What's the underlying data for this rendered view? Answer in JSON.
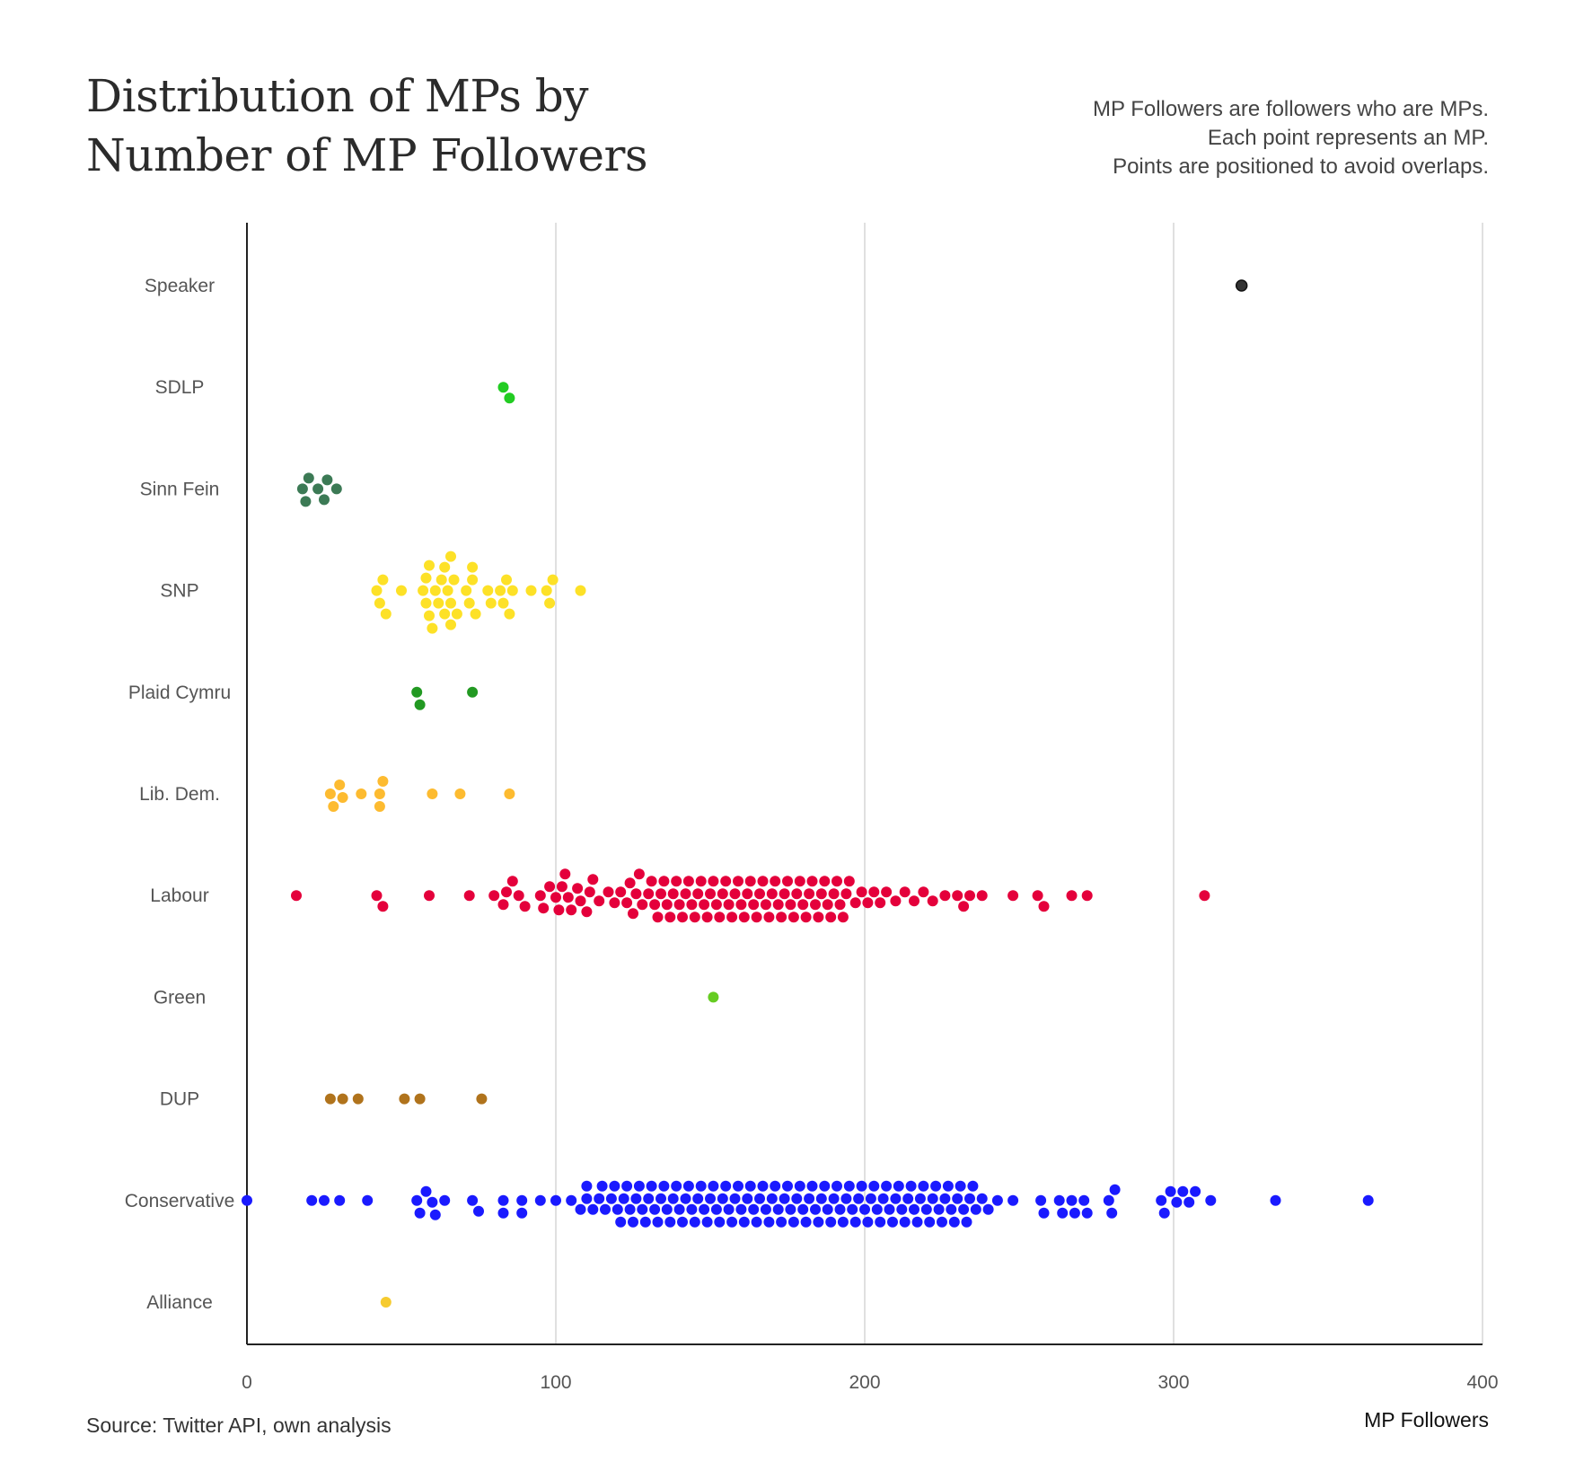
{
  "title": "Distribution of MPs by Number of MP Followers",
  "notes": [
    "MP Followers are followers who are MPs.",
    "Each point represents an MP.",
    "Points are positioned to avoid overlaps."
  ],
  "source": "Source: Twitter API, own analysis",
  "chart_data": {
    "type": "scatter",
    "subtype": "beeswarm",
    "xlabel": "MP Followers",
    "ylabel": "",
    "xlim": [
      0,
      400
    ],
    "xticks": [
      0,
      100,
      200,
      300,
      400
    ],
    "grid": "vertical",
    "categories": [
      "Speaker",
      "SDLP",
      "Sinn Fein",
      "SNP",
      "Plaid Cymru",
      "Lib. Dem.",
      "Labour",
      "Green",
      "DUP",
      "Conservative",
      "Alliance"
    ],
    "colors": {
      "Speaker": "#333333",
      "SDLP": "#22cc22",
      "Sinn Fein": "#3c7a55",
      "SNP": "#fde127",
      "Plaid Cymru": "#229922",
      "Lib. Dem.": "#fdbb30",
      "Labour": "#e4003b",
      "Green": "#66cc22",
      "DUP": "#b0731c",
      "Conservative": "#1a1aff",
      "Alliance": "#f6cb2f"
    },
    "series": [
      {
        "name": "Speaker",
        "values": [
          322
        ]
      },
      {
        "name": "SDLP",
        "values": [
          83,
          85
        ]
      },
      {
        "name": "Sinn Fein",
        "values": [
          18,
          19,
          20,
          23,
          25,
          26,
          29
        ]
      },
      {
        "name": "SNP",
        "values": [
          42,
          43,
          44,
          45,
          50,
          57,
          58,
          58,
          59,
          59,
          60,
          61,
          62,
          63,
          64,
          64,
          65,
          66,
          66,
          66,
          67,
          68,
          71,
          72,
          73,
          73,
          74,
          78,
          79,
          82,
          83,
          84,
          85,
          86,
          92,
          97,
          98,
          99,
          108
        ]
      },
      {
        "name": "Plaid Cymru",
        "values": [
          55,
          56,
          73
        ]
      },
      {
        "name": "Lib. Dem.",
        "values": [
          27,
          28,
          30,
          31,
          37,
          43,
          43,
          44,
          60,
          69,
          85
        ]
      },
      {
        "name": "Labour",
        "values": [
          16,
          42,
          44,
          59,
          72,
          80,
          83,
          84,
          86,
          88,
          90,
          95,
          96,
          98,
          100,
          101,
          102,
          103,
          104,
          105,
          107,
          108,
          110,
          111,
          112,
          114,
          117,
          119,
          121,
          123,
          124,
          125,
          126,
          127,
          128,
          130,
          131,
          132,
          133,
          134,
          135,
          136,
          137,
          138,
          139,
          140,
          141,
          142,
          143,
          144,
          145,
          146,
          147,
          148,
          149,
          150,
          151,
          152,
          153,
          154,
          155,
          156,
          157,
          158,
          159,
          160,
          161,
          162,
          163,
          164,
          165,
          166,
          167,
          168,
          169,
          170,
          171,
          172,
          173,
          174,
          175,
          176,
          177,
          178,
          179,
          180,
          181,
          182,
          183,
          184,
          185,
          186,
          187,
          188,
          189,
          190,
          191,
          192,
          193,
          194,
          195,
          197,
          199,
          201,
          203,
          205,
          207,
          210,
          213,
          216,
          219,
          222,
          226,
          230,
          232,
          234,
          238,
          248,
          256,
          258,
          267,
          272,
          310
        ]
      },
      {
        "name": "Green",
        "values": [
          151
        ]
      },
      {
        "name": "DUP",
        "values": [
          27,
          31,
          36,
          51,
          56,
          76
        ]
      },
      {
        "name": "Conservative",
        "values": [
          0,
          21,
          25,
          30,
          39,
          55,
          56,
          58,
          60,
          61,
          64,
          73,
          75,
          83,
          83,
          89,
          89,
          95,
          100,
          105,
          108,
          110,
          110,
          112,
          114,
          115,
          116,
          118,
          119,
          120,
          121,
          122,
          123,
          124,
          125,
          126,
          127,
          128,
          129,
          130,
          131,
          132,
          133,
          134,
          135,
          136,
          137,
          138,
          139,
          140,
          141,
          142,
          143,
          144,
          145,
          146,
          147,
          148,
          149,
          150,
          151,
          152,
          153,
          154,
          155,
          156,
          157,
          158,
          159,
          160,
          161,
          162,
          163,
          164,
          165,
          166,
          167,
          168,
          169,
          170,
          171,
          172,
          173,
          174,
          175,
          176,
          177,
          178,
          179,
          180,
          181,
          182,
          183,
          184,
          185,
          186,
          187,
          188,
          189,
          190,
          191,
          192,
          193,
          194,
          195,
          196,
          197,
          198,
          199,
          200,
          201,
          202,
          203,
          204,
          205,
          206,
          207,
          208,
          209,
          210,
          211,
          212,
          213,
          214,
          215,
          216,
          217,
          218,
          219,
          220,
          221,
          222,
          223,
          224,
          225,
          226,
          227,
          228,
          229,
          230,
          231,
          232,
          233,
          234,
          235,
          236,
          238,
          240,
          243,
          248,
          257,
          258,
          263,
          264,
          267,
          268,
          271,
          272,
          279,
          280,
          281,
          296,
          297,
          299,
          301,
          303,
          305,
          307,
          312,
          333,
          363
        ]
      },
      {
        "name": "Alliance",
        "values": [
          45
        ]
      }
    ]
  }
}
